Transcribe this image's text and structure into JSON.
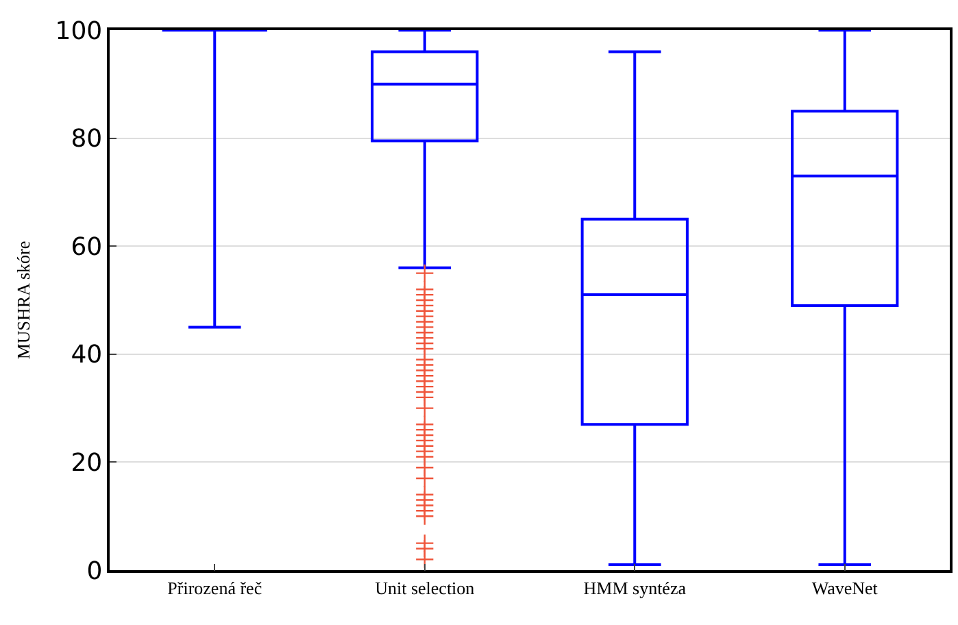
{
  "chart_data": {
    "type": "box",
    "ylabel": "MUSHRA skóre",
    "categories": [
      "Přirozená řeč",
      "Unit selection",
      "HMM syntéza",
      "WaveNet"
    ],
    "color": "#0000ff",
    "boxes": [
      {
        "low": 45,
        "q1": 100,
        "median": 100,
        "q3": 100,
        "high": 100
      },
      {
        "low": 56,
        "q1": 79.5,
        "median": 90,
        "q3": 96,
        "high": 100,
        "outliers": [
          55,
          52,
          51,
          50,
          49,
          48,
          47,
          46,
          45,
          44,
          43,
          42,
          41,
          39,
          38,
          37,
          36,
          35,
          34,
          33,
          32,
          30,
          27,
          26,
          25,
          24,
          23,
          22,
          21,
          19,
          17,
          14,
          13,
          12,
          11,
          10,
          5,
          4,
          2
        ]
      },
      {
        "low": 1,
        "q1": 27,
        "median": 51,
        "q3": 65,
        "high": 96
      },
      {
        "low": 1,
        "q1": 49,
        "median": 73,
        "q3": 85,
        "high": 100
      }
    ],
    "ylim": [
      0,
      100
    ],
    "yticks": [
      0,
      20,
      40,
      60,
      80,
      100
    ],
    "grid": "y"
  }
}
